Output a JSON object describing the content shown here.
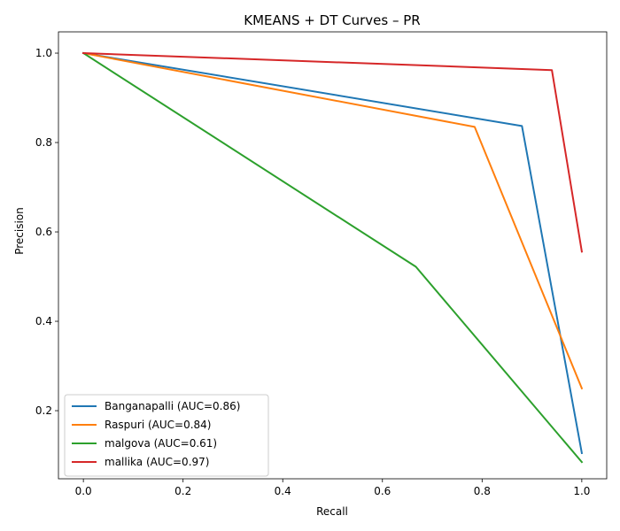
{
  "chart_data": {
    "type": "line",
    "title": "KMEANS + DT Curves – PR",
    "xlabel": "Recall",
    "ylabel": "Precision",
    "xlim": [
      -0.05,
      1.05
    ],
    "ylim": [
      0.0476,
      1.0476
    ],
    "xticks": [
      0.0,
      0.2,
      0.4,
      0.6,
      0.8,
      1.0
    ],
    "xtick_labels": [
      "0.0",
      "0.2",
      "0.4",
      "0.6",
      "0.8",
      "1.0"
    ],
    "yticks": [
      0.2,
      0.4,
      0.6,
      0.8,
      1.0
    ],
    "ytick_labels": [
      "0.2",
      "0.4",
      "0.6",
      "0.8",
      "1.0"
    ],
    "grid": false,
    "legend_position": "lower-left",
    "series": [
      {
        "name": "Banganapalli (AUC=0.86)",
        "color": "#1f77b4",
        "x": [
          0.0,
          0.88,
          1.0
        ],
        "y": [
          1.0,
          0.837,
          0.105
        ]
      },
      {
        "name": "Raspuri (AUC=0.84)",
        "color": "#ff7f0e",
        "x": [
          0.0,
          0.785,
          1.0
        ],
        "y": [
          1.0,
          0.835,
          0.25
        ]
      },
      {
        "name": "malgova (AUC=0.61)",
        "color": "#2ca02c",
        "x": [
          0.0,
          0.667,
          1.0
        ],
        "y": [
          1.0,
          0.522,
          0.085
        ]
      },
      {
        "name": "mallika (AUC=0.97)",
        "color": "#d62728",
        "x": [
          0.0,
          0.94,
          1.0
        ],
        "y": [
          1.0,
          0.962,
          0.556
        ]
      }
    ]
  }
}
